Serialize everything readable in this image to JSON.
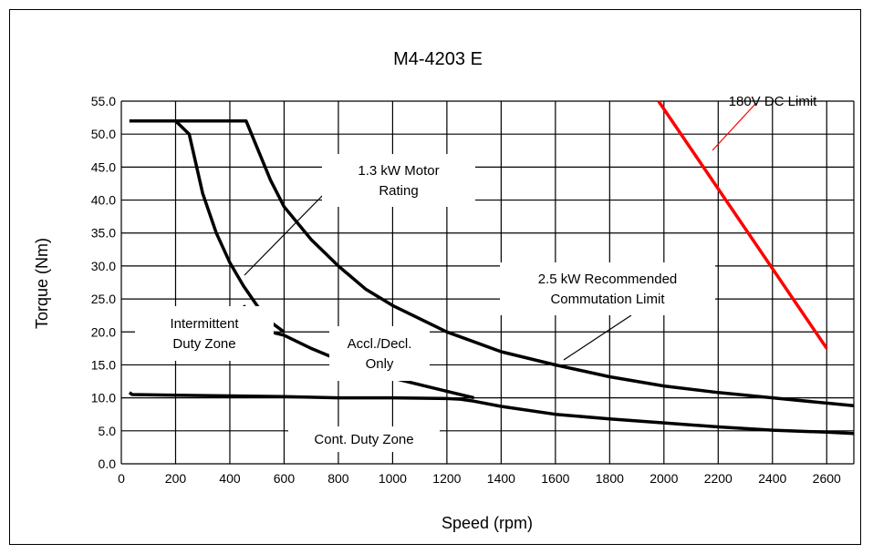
{
  "chart_data": {
    "type": "line",
    "title": "M4-4203 E",
    "xlabel": "Speed (rpm)",
    "ylabel": "Torque (Nm)",
    "xlim": [
      0,
      2700
    ],
    "ylim": [
      0,
      55
    ],
    "xticks": [
      0,
      200,
      400,
      600,
      800,
      1000,
      1200,
      1400,
      1600,
      1800,
      2000,
      2200,
      2400,
      2600
    ],
    "xtick_labels": [
      "0",
      "200",
      "400",
      "600",
      "800",
      "1000",
      "1200",
      "1400",
      "1600",
      "1800",
      "2000",
      "2200",
      "2400",
      "2600"
    ],
    "yticks": [
      0,
      5,
      10,
      15,
      20,
      25,
      30,
      35,
      40,
      45,
      50,
      55
    ],
    "ytick_labels": [
      "0.0",
      "5.0",
      "10.0",
      "15.0",
      "20.0",
      "25.0",
      "30.0",
      "35.0",
      "40.0",
      "45.0",
      "50.0",
      "55.0"
    ],
    "grid": true,
    "legend": "none",
    "series": [
      {
        "color": "#000000",
        "x": [
          30,
          100,
          200,
          250,
          300,
          350,
          400,
          450,
          500,
          550,
          600
        ],
        "y": [
          52,
          52,
          52,
          50,
          41,
          35,
          30.5,
          27,
          24,
          21.5,
          20
        ]
      },
      {
        "color": "#000000",
        "x": [
          30,
          100,
          200,
          300,
          400,
          460,
          500,
          550,
          600,
          700,
          800,
          900,
          1000,
          1200,
          1400,
          1600,
          1800,
          2000,
          2200,
          2400,
          2600,
          2700
        ],
        "y": [
          52,
          52,
          52,
          52,
          52,
          52,
          48,
          43,
          39,
          34,
          30,
          26.5,
          24,
          20,
          17,
          15,
          13.2,
          11.8,
          10.8,
          10,
          9.2,
          8.8
        ]
      },
      {
        "color": "#000000",
        "x": [
          30,
          40,
          200,
          400,
          600,
          800,
          1000,
          1200,
          1250,
          1300,
          1400,
          1600,
          1800,
          2000,
          2200,
          2400,
          2600,
          2700
        ],
        "y": [
          10.8,
          10.5,
          10.4,
          10.3,
          10.2,
          10.0,
          10.0,
          9.9,
          9.8,
          9.5,
          8.7,
          7.5,
          6.8,
          6.2,
          5.6,
          5.1,
          4.8,
          4.6
        ]
      },
      {
        "color": "#000000",
        "x": [
          450,
          500,
          550,
          600,
          700,
          800,
          900,
          1000,
          1100,
          1200,
          1300
        ],
        "y": [
          24,
          21.5,
          20,
          19.5,
          17.5,
          15.8,
          14,
          13,
          12,
          11,
          10
        ]
      },
      {
        "color": "#ff0000",
        "x": [
          1980,
          2600
        ],
        "y": [
          55,
          17.5
        ]
      }
    ],
    "annotations": [
      {
        "lines": [
          "1.3 kW Motor",
          "Rating"
        ]
      },
      {
        "lines": [
          "2.5 kW Recommended",
          "Commutation Limit"
        ]
      },
      {
        "lines": [
          "180V DC Limit"
        ],
        "color": "#ff0000"
      },
      {
        "lines": [
          "Intermittent",
          "Duty  Zone"
        ]
      },
      {
        "lines": [
          "Accl./Decl.",
          "Only"
        ]
      },
      {
        "lines": [
          "Cont. Duty Zone"
        ]
      }
    ]
  }
}
